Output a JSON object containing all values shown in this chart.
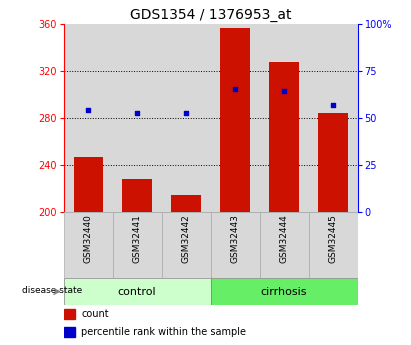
{
  "title": "GDS1354 / 1376953_at",
  "categories": [
    "GSM32440",
    "GSM32441",
    "GSM32442",
    "GSM32443",
    "GSM32444",
    "GSM32445"
  ],
  "bar_values": [
    247,
    228,
    215,
    357,
    328,
    284
  ],
  "bar_base": 200,
  "percentile_values": [
    287,
    284,
    284,
    305,
    303,
    291
  ],
  "ylim_left": [
    200,
    360
  ],
  "ylim_right": [
    0,
    100
  ],
  "yticks_left": [
    200,
    240,
    280,
    320,
    360
  ],
  "yticks_right": [
    0,
    25,
    50,
    75,
    100
  ],
  "ytick_labels_right": [
    "0",
    "25",
    "50",
    "75",
    "100%"
  ],
  "bar_color": "#cc1100",
  "dot_color": "#0000cc",
  "bar_width": 0.6,
  "control_color": "#ccffcc",
  "cirrhosis_color": "#66ee66",
  "plot_bg_color": "#d8d8d8",
  "disease_state_label": "disease state",
  "legend_count_label": "count",
  "legend_percentile_label": "percentile rank within the sample",
  "title_fontsize": 10,
  "tick_label_fontsize": 7,
  "group_label_fontsize": 8,
  "legend_fontsize": 7
}
